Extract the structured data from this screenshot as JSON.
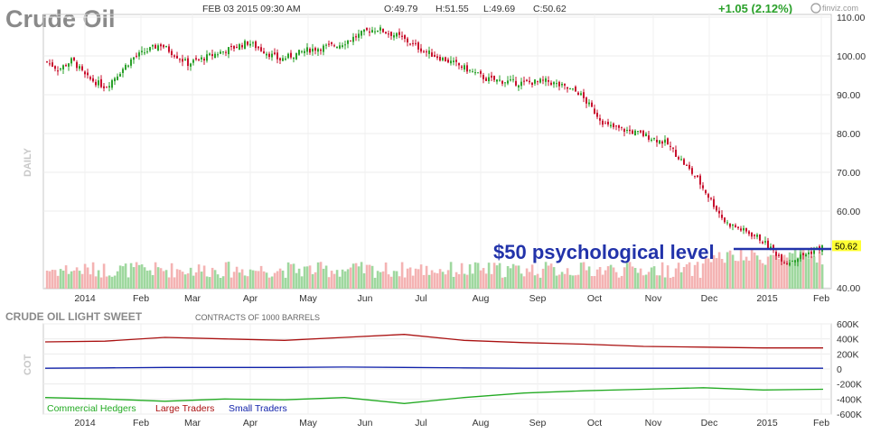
{
  "header": {
    "title": "Crude Oil",
    "datetime": "FEB 03 2015 09:30 AM",
    "open": "O:49.79",
    "high": "H:51.55",
    "low": "L:49.69",
    "close": "C:50.62",
    "change": "+1.05 (2.12%)",
    "brand": "finviz.com"
  },
  "colors": {
    "up": "#2aa02a",
    "down": "#c8102e",
    "vol_up": "#9fd89f",
    "vol_down": "#f4b3b3",
    "commercial": "#22aa22",
    "large": "#aa1111",
    "small": "#1122aa",
    "annotation": "#2233aa",
    "last_price_bg": "#ffff33"
  },
  "chart_data": [
    {
      "type": "candlestick",
      "title": "Crude Oil",
      "side_label": "DAILY",
      "ylim": [
        40,
        110
      ],
      "yticks": [
        "110.00",
        "100.00",
        "90.00",
        "80.00",
        "70.00",
        "60.00",
        "40.00"
      ],
      "xticks": [
        "2014",
        "Feb",
        "Mar",
        "Apr",
        "May",
        "Jun",
        "Jul",
        "Aug",
        "Sep",
        "Oct",
        "Nov",
        "Dec",
        "2015",
        "Feb"
      ],
      "last_price": "50.62",
      "annotation": "$50 psychological level",
      "annotation_level": 50,
      "close_path": {
        "x": [
          "2014-01-02",
          "2014-01-08",
          "2014-01-15",
          "2014-01-22",
          "2014-02-01",
          "2014-02-15",
          "2014-03-01",
          "2014-03-15",
          "2014-04-01",
          "2014-04-15",
          "2014-05-01",
          "2014-05-15",
          "2014-06-01",
          "2014-06-15",
          "2014-06-20",
          "2014-07-01",
          "2014-07-15",
          "2014-08-01",
          "2014-08-15",
          "2014-09-01",
          "2014-09-15",
          "2014-10-01",
          "2014-10-15",
          "2014-11-01",
          "2014-11-15",
          "2014-12-01",
          "2014-12-15",
          "2015-01-01",
          "2015-01-15",
          "2015-02-03"
        ],
        "y": [
          98.5,
          96.5,
          99.0,
          94.5,
          92.0,
          99.5,
          103.0,
          98.0,
          101.0,
          103.5,
          99.0,
          101.5,
          103.0,
          106.5,
          107.0,
          105.0,
          101.0,
          97.5,
          94.0,
          93.0,
          93.5,
          90.5,
          82.0,
          80.0,
          77.5,
          68.0,
          57.0,
          53.0,
          46.5,
          50.6
        ]
      }
    },
    {
      "type": "line",
      "title": "CRUDE OIL LIGHT SWEET",
      "subtitle": "CONTRACTS OF 1000 BARRELS",
      "side_label": "COT",
      "ylim": [
        -600000,
        600000
      ],
      "yticks": [
        "600K",
        "400K",
        "200K",
        "0",
        "-200K",
        "-400K",
        "-600K"
      ],
      "xticks": [
        "2014",
        "Feb",
        "Mar",
        "Apr",
        "May",
        "Jun",
        "Jul",
        "Aug",
        "Sep",
        "Oct",
        "Nov",
        "Dec",
        "2015",
        "Feb"
      ],
      "x": [
        "2014-01",
        "2014-02",
        "2014-03",
        "2014-04",
        "2014-05",
        "2014-06",
        "2014-07",
        "2014-08",
        "2014-09",
        "2014-10",
        "2014-11",
        "2014-12",
        "2015-01",
        "2015-02"
      ],
      "series": [
        {
          "name": "Commercial Hedgers",
          "values": [
            -380000,
            -400000,
            -430000,
            -400000,
            -410000,
            -380000,
            -460000,
            -380000,
            -320000,
            -290000,
            -270000,
            -250000,
            -280000,
            -270000
          ]
        },
        {
          "name": "Large Traders",
          "values": [
            360000,
            370000,
            420000,
            400000,
            380000,
            420000,
            460000,
            380000,
            350000,
            330000,
            300000,
            290000,
            280000,
            280000
          ]
        },
        {
          "name": "Small Traders",
          "values": [
            10000,
            15000,
            20000,
            20000,
            20000,
            25000,
            20000,
            15000,
            10000,
            10000,
            10000,
            10000,
            10000,
            10000
          ]
        }
      ]
    }
  ]
}
